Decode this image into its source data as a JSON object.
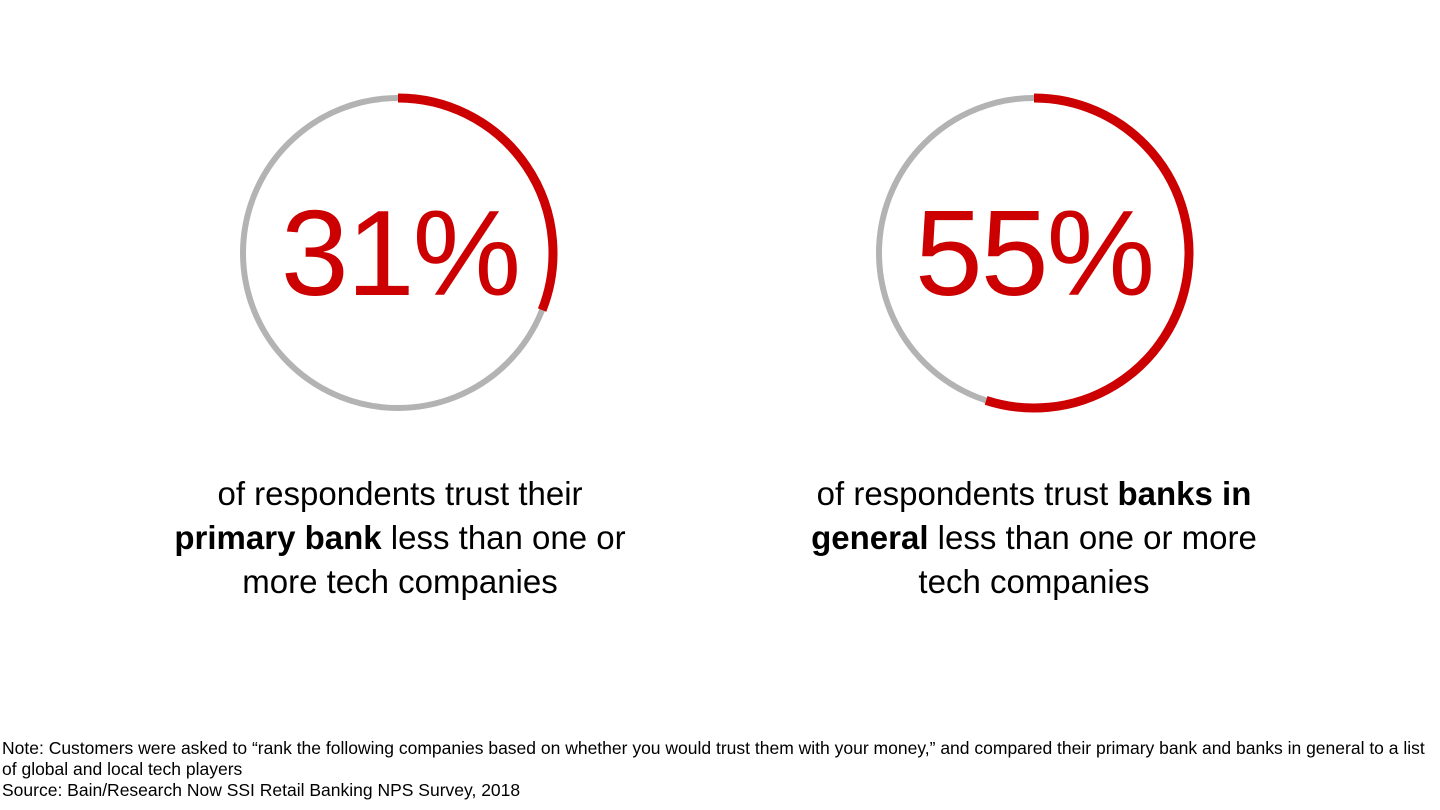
{
  "colors": {
    "accent": "#cc0000",
    "track": "#b3b3b3",
    "text": "#000000"
  },
  "chart_data": [
    {
      "type": "pie",
      "variant": "donut-progress",
      "value": 31,
      "max": 100,
      "value_label": "31%",
      "caption": {
        "pre": "of respondents trust their ",
        "bold": "primary bank",
        "post": " less than one or more tech companies"
      }
    },
    {
      "type": "pie",
      "variant": "donut-progress",
      "value": 55,
      "max": 100,
      "value_label": "55%",
      "caption": {
        "pre": "of respondents trust ",
        "bold": "banks in general",
        "post": " less than one or more tech companies"
      }
    }
  ],
  "footnotes": {
    "note": "Note: Customers were asked to “rank the following companies based on whether you would trust them with your money,” and compared their primary bank and banks in general to a list of global and local tech players",
    "source": "Source: Bain/Research Now SSI Retail Banking NPS Survey, 2018"
  }
}
